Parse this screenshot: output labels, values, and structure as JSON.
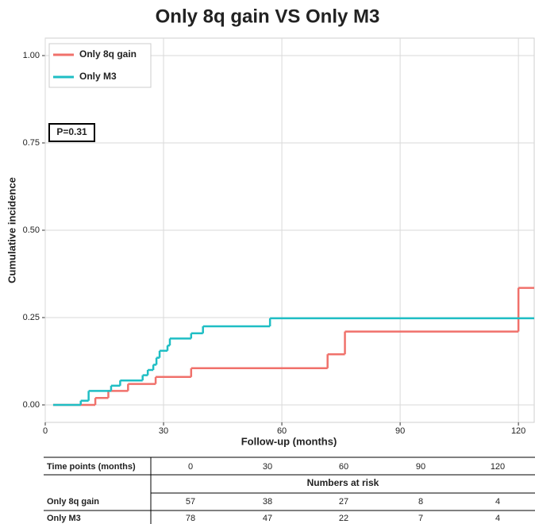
{
  "chart_data": {
    "type": "step",
    "title": "Only 8q gain VS Only M3",
    "x_label": "Follow-up (months)",
    "y_label": "Cumulative incidence",
    "annotation": "P=0.31",
    "xlim": [
      0,
      124
    ],
    "ylim": [
      -0.05,
      1.05
    ],
    "xticks": [
      0,
      30,
      60,
      90,
      120
    ],
    "yticks": [
      {
        "value": 0,
        "label": "0.00"
      },
      {
        "value": 0.25,
        "label": "0.25"
      },
      {
        "value": 0.5,
        "label": "0.50"
      },
      {
        "value": 0.75,
        "label": "0.75"
      },
      {
        "value": 1,
        "label": "1.00"
      }
    ],
    "grid": true,
    "legend": "top-left",
    "series": [
      {
        "name": "Only 8q gain",
        "color": "#f0716b",
        "x": [
          2,
          12.7,
          16,
          21,
          28,
          37,
          71.6,
          76,
          120
        ],
        "values": [
          0,
          0.02,
          0.04,
          0.06,
          0.08,
          0.105,
          0.145,
          0.21,
          0.335
        ]
      },
      {
        "name": "Only M3",
        "color": "#1fbec4",
        "x": [
          2,
          9,
          11,
          16.7,
          19,
          24.7,
          26,
          27.4,
          28.2,
          29,
          31,
          31.6,
          37,
          40,
          57
        ],
        "values": [
          0,
          0.012,
          0.04,
          0.055,
          0.07,
          0.085,
          0.1,
          0.115,
          0.135,
          0.155,
          0.17,
          0.19,
          0.205,
          0.225,
          0.248
        ]
      }
    ]
  },
  "risk_table": {
    "header": "Time points (months)",
    "time_points": [
      "0",
      "30",
      "60",
      "90",
      "120"
    ],
    "subheader": "Numbers at risk",
    "rows": [
      {
        "label": "Only 8q gain",
        "counts": [
          "57",
          "38",
          "27",
          "8",
          "4"
        ]
      },
      {
        "label": "Only M3",
        "counts": [
          "78",
          "47",
          "22",
          "7",
          "4"
        ]
      }
    ]
  }
}
